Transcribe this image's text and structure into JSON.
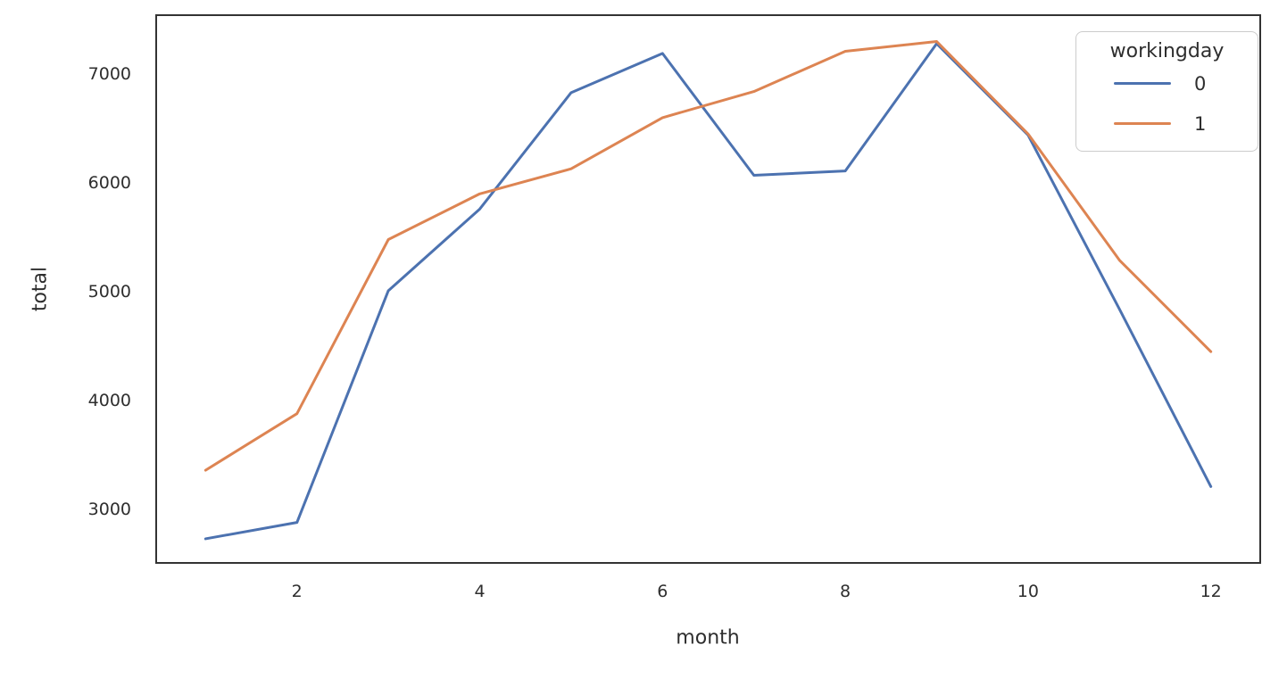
{
  "chart_data": {
    "type": "line",
    "title": "",
    "xlabel": "month",
    "ylabel": "total",
    "x": [
      1,
      2,
      3,
      4,
      5,
      6,
      7,
      8,
      9,
      10,
      11,
      12
    ],
    "series": [
      {
        "name": "0",
        "color": "#4c72b0",
        "values": [
          2730,
          2880,
          5010,
          5760,
          6830,
          7190,
          6070,
          6110,
          7280,
          6440,
          4840,
          3210
        ]
      },
      {
        "name": "1",
        "color": "#dd8452",
        "values": [
          3360,
          3880,
          5480,
          5900,
          6130,
          6600,
          6840,
          7210,
          7300,
          6450,
          5290,
          4450
        ]
      }
    ],
    "legend": {
      "title": "workingday",
      "position": "upper-right"
    },
    "xticks": [
      "2",
      "4",
      "6",
      "8",
      "10",
      "12"
    ],
    "xtick_values": [
      2,
      4,
      6,
      8,
      10,
      12
    ],
    "yticks": [
      "3000",
      "4000",
      "5000",
      "6000",
      "7000"
    ],
    "ytick_values": [
      3000,
      4000,
      5000,
      6000,
      7000
    ],
    "xlim": [
      0.45,
      12.55
    ],
    "ylim": [
      2500,
      7550
    ],
    "grid": false,
    "axes_edge_color": "#333333",
    "text_color": "#2e2e2e",
    "line_width": 3
  }
}
